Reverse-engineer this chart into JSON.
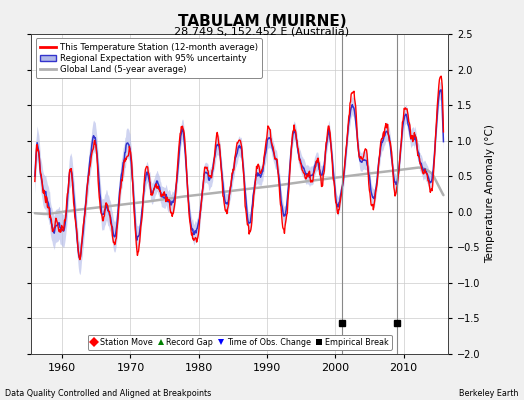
{
  "title": "TABULAM (MUIRNE)",
  "subtitle": "28.749 S, 152.452 E (Australia)",
  "ylabel": "Temperature Anomaly (°C)",
  "footer_left": "Data Quality Controlled and Aligned at Breakpoints",
  "footer_right": "Berkeley Earth",
  "ylim": [
    -2.0,
    2.5
  ],
  "xlim": [
    1955.5,
    2016.5
  ],
  "yticks": [
    -2,
    -1.5,
    -1,
    -0.5,
    0,
    0.5,
    1,
    1.5,
    2,
    2.5
  ],
  "xticks": [
    1960,
    1970,
    1980,
    1990,
    2000,
    2010
  ],
  "vertical_lines": [
    2001.0,
    2009.0
  ],
  "empirical_breaks": [
    2001.0,
    2009.0
  ],
  "bg_color": "#f0f0f0",
  "plot_bg_color": "#ffffff",
  "grid_color": "#cccccc",
  "red_color": "#ff0000",
  "blue_color": "#3333cc",
  "blue_fill_color": "#b0b8e8",
  "gray_color": "#b0b0b0",
  "vline_color": "#888888"
}
